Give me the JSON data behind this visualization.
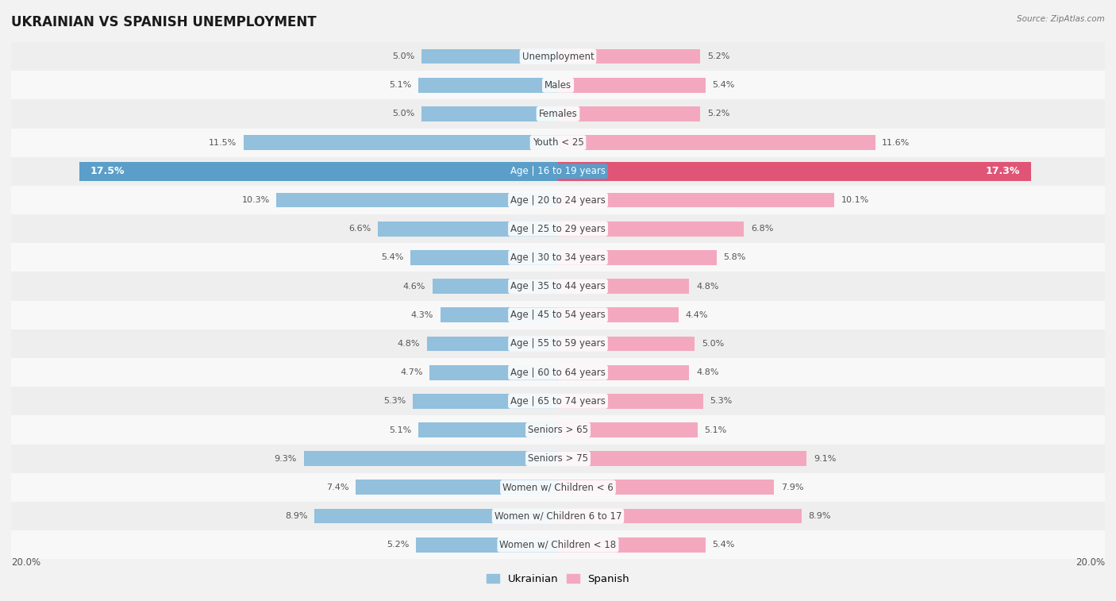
{
  "title": "UKRAINIAN VS SPANISH UNEMPLOYMENT",
  "source": "Source: ZipAtlas.com",
  "categories": [
    "Unemployment",
    "Males",
    "Females",
    "Youth < 25",
    "Age | 16 to 19 years",
    "Age | 20 to 24 years",
    "Age | 25 to 29 years",
    "Age | 30 to 34 years",
    "Age | 35 to 44 years",
    "Age | 45 to 54 years",
    "Age | 55 to 59 years",
    "Age | 60 to 64 years",
    "Age | 65 to 74 years",
    "Seniors > 65",
    "Seniors > 75",
    "Women w/ Children < 6",
    "Women w/ Children 6 to 17",
    "Women w/ Children < 18"
  ],
  "ukrainian": [
    5.0,
    5.1,
    5.0,
    11.5,
    17.5,
    10.3,
    6.6,
    5.4,
    4.6,
    4.3,
    4.8,
    4.7,
    5.3,
    5.1,
    9.3,
    7.4,
    8.9,
    5.2
  ],
  "spanish": [
    5.2,
    5.4,
    5.2,
    11.6,
    17.3,
    10.1,
    6.8,
    5.8,
    4.8,
    4.4,
    5.0,
    4.8,
    5.3,
    5.1,
    9.1,
    7.9,
    8.9,
    5.4
  ],
  "ukrainian_color": "#92c0dd",
  "spanish_color": "#f4a8bf",
  "ukrainian_highlight": "#5a9ec9",
  "spanish_highlight": "#e05575",
  "bg_color": "#f2f2f2",
  "row_bg_even": "#eeeeee",
  "row_bg_odd": "#f8f8f8",
  "x_max": 20.0,
  "bar_height": 0.52,
  "highlight_bar_height": 0.65,
  "legend_ukrainian": "Ukrainian",
  "legend_spanish": "Spanish",
  "title_fontsize": 12,
  "label_fontsize": 8.5,
  "value_fontsize": 8.0,
  "highlight_value_fontsize": 9.0
}
